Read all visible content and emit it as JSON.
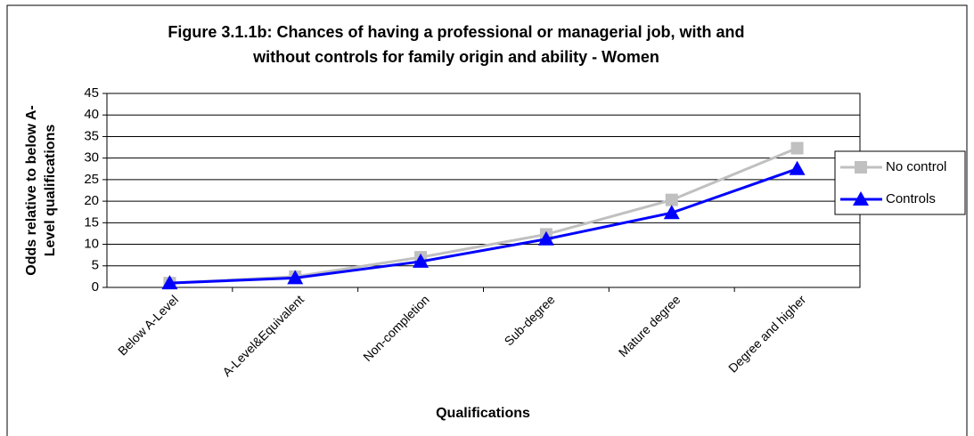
{
  "chart_data": {
    "type": "line",
    "title": [
      "Figure 3.1.1b: Chances of having a professional or managerial job, with and",
      "without controls for family origin and ability - Women"
    ],
    "xlabel": "Qualifications",
    "ylabel": [
      "Odds relative to below A-",
      "Level qualifications"
    ],
    "categories": [
      "Below A-Level",
      "A-Level&Equivalent",
      "Non-completion",
      "Sub-degree",
      "Mature degree",
      "Degree and higher"
    ],
    "series": [
      {
        "name": "No control",
        "color": "#c0c0c0",
        "marker": "square",
        "values": [
          1,
          2.5,
          7,
          12.3,
          20.3,
          32.3
        ]
      },
      {
        "name": "Controls",
        "color": "#0000ff",
        "marker": "triangle",
        "values": [
          1,
          2.2,
          6,
          11.2,
          17.3,
          27.5
        ]
      }
    ],
    "ylim": [
      0,
      45
    ],
    "yticks": [
      0,
      5,
      10,
      15,
      20,
      25,
      30,
      35,
      40,
      45
    ],
    "grid": true,
    "legend": "right"
  }
}
